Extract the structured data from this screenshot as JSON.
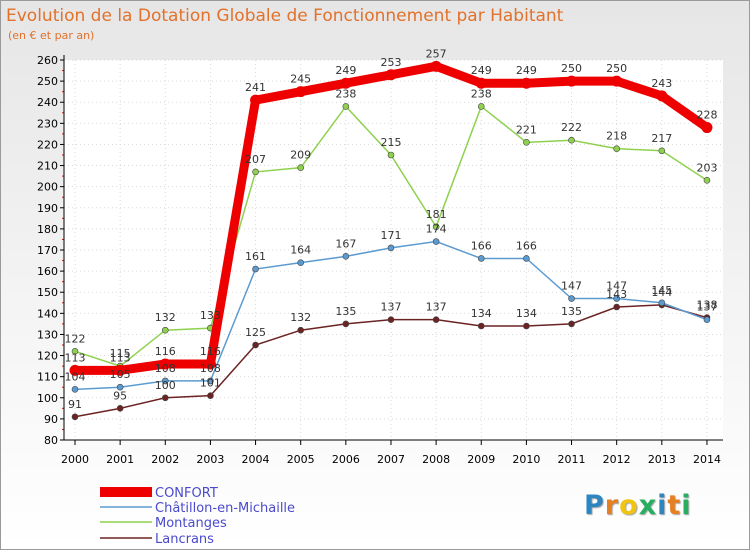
{
  "chart_data": {
    "type": "line",
    "title": "Evolution de la Dotation Globale de Fonctionnement par Habitant",
    "subtitle": "(en € et par an)",
    "xlabel": "",
    "ylabel": "",
    "ylim": [
      80,
      260
    ],
    "yticks": [
      80,
      90,
      100,
      110,
      120,
      130,
      140,
      150,
      160,
      170,
      180,
      190,
      200,
      210,
      220,
      230,
      240,
      250,
      260
    ],
    "categories": [
      "2000",
      "2001",
      "2002",
      "2003",
      "2004",
      "2005",
      "2006",
      "2007",
      "2008",
      "2009",
      "2010",
      "2011",
      "2012",
      "2013",
      "2014"
    ],
    "legend_position": "bottom-left",
    "series": [
      {
        "name": "CONFORT",
        "color": "#ee0000",
        "values": [
          113,
          113,
          116,
          116,
          241,
          245,
          249,
          253,
          257,
          249,
          249,
          250,
          250,
          243,
          228
        ],
        "labels": [
          "113",
          "113",
          "116",
          "116",
          "241",
          "245",
          "249",
          "253",
          "257",
          "249",
          "249",
          "250",
          "250",
          "243",
          "228"
        ]
      },
      {
        "name": "Châtillon-en-Michaille",
        "color": "#5b9bd0",
        "values": [
          104,
          105,
          108,
          108,
          161,
          164,
          167,
          171,
          174,
          166,
          166,
          147,
          147,
          145,
          137
        ],
        "labels": [
          "104",
          "105",
          "108",
          "108",
          "161",
          "164",
          "167",
          "171",
          "174",
          "166",
          "166",
          "147",
          "147",
          "145",
          "137"
        ]
      },
      {
        "name": "Montanges",
        "color": "#8fd14f",
        "values": [
          122,
          115,
          132,
          133,
          207,
          209,
          238,
          215,
          181,
          238,
          221,
          222,
          218,
          217,
          203
        ],
        "labels": [
          "122",
          "115",
          "132",
          "133",
          "207",
          "209",
          "238",
          "215",
          "181",
          "238",
          "221",
          "222",
          "218",
          "217",
          "203"
        ]
      },
      {
        "name": "Lancrans",
        "color": "#6b2323",
        "values": [
          91,
          95,
          100,
          101,
          125,
          132,
          135,
          137,
          137,
          134,
          134,
          135,
          143,
          144,
          138
        ],
        "labels": [
          "91",
          "95",
          "100",
          "101",
          "125",
          "132",
          "135",
          "137",
          "137",
          "134",
          "134",
          "135",
          "143",
          "144",
          "138"
        ]
      }
    ]
  },
  "logo": {
    "letters": [
      "P",
      "r",
      "o",
      "x",
      "i",
      "t",
      "i"
    ],
    "colors": [
      "#2e86c1",
      "#e67e22",
      "#f1c40f",
      "#27ae60",
      "#2e86c1",
      "#e67e22",
      "#27ae60"
    ]
  }
}
